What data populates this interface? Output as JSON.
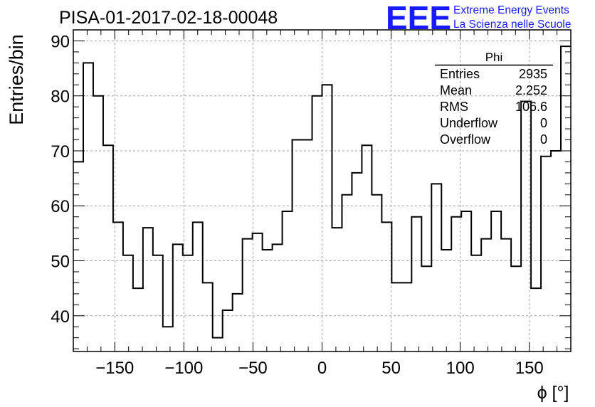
{
  "header": {
    "title": "PISA-01-2017-02-18-00048",
    "logo_text": "EEE",
    "logo_line1": "Extreme Energy Events",
    "logo_line2": "La Scienza nelle Scuole",
    "logo_color": "#1a1aff"
  },
  "stats": {
    "name": "Phi",
    "rows": [
      {
        "label": "Entries",
        "value": "2935"
      },
      {
        "label": "Mean",
        "value": "2.252"
      },
      {
        "label": "RMS",
        "value": "106.6"
      },
      {
        "label": "Underflow",
        "value": "0"
      },
      {
        "label": "Overflow",
        "value": "0"
      }
    ]
  },
  "chart_data": {
    "type": "histogram",
    "xlabel": "ϕ [°]",
    "ylabel": "Entries/bin",
    "xlim": [
      -180,
      180
    ],
    "ylim": [
      33.5,
      92
    ],
    "xticks": [
      -150,
      -100,
      -50,
      0,
      50,
      100,
      150
    ],
    "yticks": [
      40,
      50,
      60,
      70,
      80,
      90
    ],
    "bin_width": 7.2,
    "values": [
      68,
      86,
      80,
      71,
      57,
      51,
      45,
      56,
      51,
      38,
      53,
      51,
      57,
      46,
      36,
      41,
      44,
      54,
      55,
      52,
      53,
      59,
      72,
      72,
      80,
      82,
      56,
      62,
      66,
      71,
      62,
      57,
      46,
      46,
      58,
      49,
      64,
      52,
      58,
      59,
      51,
      54,
      59,
      54,
      49,
      79,
      45,
      69,
      70,
      89
    ],
    "grid": true,
    "line_color": "#000000",
    "grid_color": "#a0a0a0"
  }
}
